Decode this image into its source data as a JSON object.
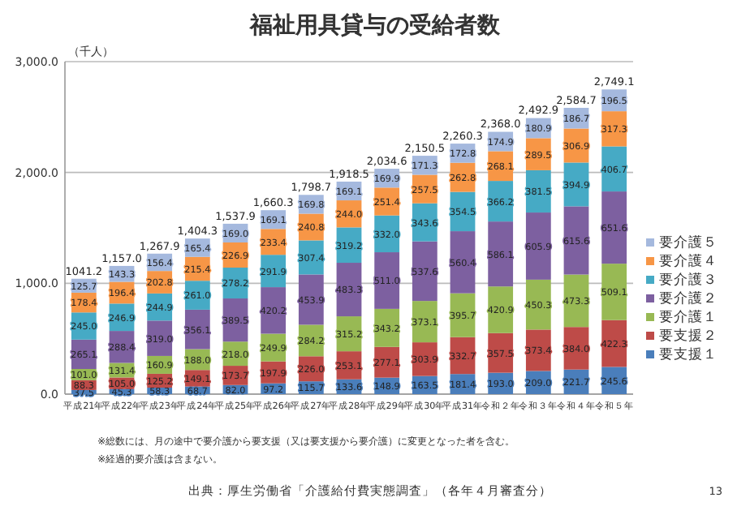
{
  "chart_data": {
    "type": "bar",
    "stacked": true,
    "title": "福祉用具貸与の受給者数",
    "ylabel": "（千人）",
    "categories": [
      "平成21年",
      "平成22年",
      "平成23年",
      "平成24年",
      "平成25年",
      "平成26年",
      "平成27年",
      "平成28年",
      "平成29年",
      "平成30年",
      "平成31年",
      "令和２年",
      "令和３年",
      "令和４年",
      "令和５年"
    ],
    "series": [
      {
        "name": "要支援１",
        "color": "#4a7ebb",
        "values": [
          37.5,
          45.3,
          58.3,
          68.7,
          82,
          97.2,
          115.7,
          133.6,
          148.9,
          163.5,
          181.4,
          193,
          209,
          221.7,
          245.6
        ],
        "value_labels": [
          "37.5",
          "45.3",
          "58.3",
          "68.7",
          "82.0",
          "97.2",
          "115.7",
          "133.6",
          "148.9",
          "163.5",
          "181.4",
          "193.0",
          "209.0",
          "221.7",
          "245.6"
        ]
      },
      {
        "name": "要支援２",
        "color": "#be4b48",
        "values": [
          88.3,
          105,
          125.2,
          149.1,
          173.7,
          197.9,
          226,
          253.1,
          277.1,
          303.9,
          332.7,
          357.5,
          373.4,
          384,
          422.3
        ],
        "value_labels": [
          "88.3",
          "105.0",
          "125.2",
          "149.1",
          "173.7",
          "197.9",
          "226.0",
          "253.1",
          "277.1",
          "303.9",
          "332.7",
          "357.5",
          "373.4",
          "384.0",
          "422.3"
        ]
      },
      {
        "name": "要介護１",
        "color": "#98b954",
        "values": [
          101,
          131.4,
          160.9,
          188,
          218,
          249.9,
          284.2,
          315.2,
          343.2,
          373.1,
          395.7,
          420.9,
          450.3,
          473.3,
          509.1
        ],
        "value_labels": [
          "101.0",
          "131.4",
          "160.9",
          "188.0",
          "218.0",
          "249.9",
          "284.2",
          "315.2",
          "343.2",
          "373.1",
          "395.7",
          "420.9",
          "450.3",
          "473.3",
          "509.1"
        ]
      },
      {
        "name": "要介護２",
        "color": "#7d60a0",
        "values": [
          265.1,
          288.4,
          319,
          356.1,
          389.5,
          420.2,
          453.9,
          483.3,
          511,
          537.6,
          560.4,
          586.1,
          605.9,
          615.6,
          651.6
        ],
        "value_labels": [
          "265.1",
          "288.4",
          "319.0",
          "356.1",
          "389.5",
          "420.2",
          "453.9",
          "483.3",
          "511.0",
          "537.6",
          "560.4",
          "586.1",
          "605.9",
          "615.6",
          "651.6"
        ]
      },
      {
        "name": "要介護３",
        "color": "#46aac5",
        "values": [
          245,
          246.9,
          244.9,
          261,
          278.2,
          291.9,
          307.4,
          319.2,
          332,
          343.6,
          354.5,
          366.2,
          381.5,
          394.9,
          406.7
        ],
        "value_labels": [
          "245.0",
          "246.9",
          "244.9",
          "261.0",
          "278.2",
          "291.9",
          "307.4",
          "319.2",
          "332.0",
          "343.6",
          "354.5",
          "366.2",
          "381.5",
          "394.9",
          "406.7"
        ]
      },
      {
        "name": "要介護４",
        "color": "#f79646",
        "values": [
          178.4,
          196.4,
          202.8,
          215.4,
          226.9,
          233.4,
          240.8,
          244,
          251.4,
          257.5,
          262.8,
          268.1,
          289.5,
          306.9,
          317.3
        ],
        "value_labels": [
          "178.4",
          "196.4",
          "202.8",
          "215.4",
          "226.9",
          "233.4",
          "240.8",
          "244.0",
          "251.4",
          "257.5",
          "262.8",
          "268.1",
          "289.5",
          "306.9",
          "317.3"
        ]
      },
      {
        "name": "要介護５",
        "color": "#a5b9de",
        "values": [
          125.7,
          143.3,
          156.4,
          165.4,
          169,
          169.1,
          169.8,
          169.1,
          169.9,
          171.3,
          172.8,
          174.9,
          180.9,
          186.7,
          196.5
        ],
        "value_labels": [
          "125.7",
          "143.3",
          "156.4",
          "165.4",
          "169.0",
          "169.1",
          "169.8",
          "169.1",
          "169.9",
          "171.3",
          "172.8",
          "174.9",
          "180.9",
          "186.7",
          "196.5"
        ]
      }
    ],
    "ylim": [
      0,
      3000
    ],
    "yticks": [
      {
        "value": 0,
        "label": "0.0"
      },
      {
        "value": 1000,
        "label": "1,000.0"
      },
      {
        "value": 2000,
        "label": "2,000.0"
      },
      {
        "value": 3000,
        "label": "3,000.0"
      }
    ],
    "grid": "y",
    "legend": "right",
    "annotations": [
      {
        "text": "1041.2",
        "x": "平成21年",
        "y": 1041.2
      },
      {
        "text": "1,157.0",
        "x": "平成22年",
        "y": 1157.0
      },
      {
        "text": "1,267.9",
        "x": "平成23年",
        "y": 1267.9
      },
      {
        "text": "1,404.3",
        "x": "平成24年",
        "y": 1404.3
      },
      {
        "text": "1,537.9",
        "x": "平成25年",
        "y": 1537.9
      },
      {
        "text": "1,660.3",
        "x": "平成26年",
        "y": 1660.3
      },
      {
        "text": "1,798.7",
        "x": "平成27年",
        "y": 1798.7
      },
      {
        "text": "1,918.5",
        "x": "平成28年",
        "y": 1918.5
      },
      {
        "text": "2,034.6",
        "x": "平成29年",
        "y": 2034.6
      },
      {
        "text": "2,150.5",
        "x": "平成30年",
        "y": 2150.5
      },
      {
        "text": "2,260.3",
        "x": "平成31年",
        "y": 2260.3
      },
      {
        "text": "2,368.0",
        "x": "令和２年",
        "y": 2368.0
      },
      {
        "text": "2,492.9",
        "x": "令和３年",
        "y": 2492.9
      },
      {
        "text": "2,584.7",
        "x": "令和４年",
        "y": 2584.7
      },
      {
        "text": "2,749.1",
        "x": "令和５年",
        "y": 2749.1
      },
      "※総数には、月の途中で要介護から要支援（又は要支援から要介護）に変更となった者を含む。",
      "※経過的要介護は含まない。",
      "出典：厚生労働省「介護給付費実態調査」（各年４月審査分）",
      "13"
    ]
  }
}
